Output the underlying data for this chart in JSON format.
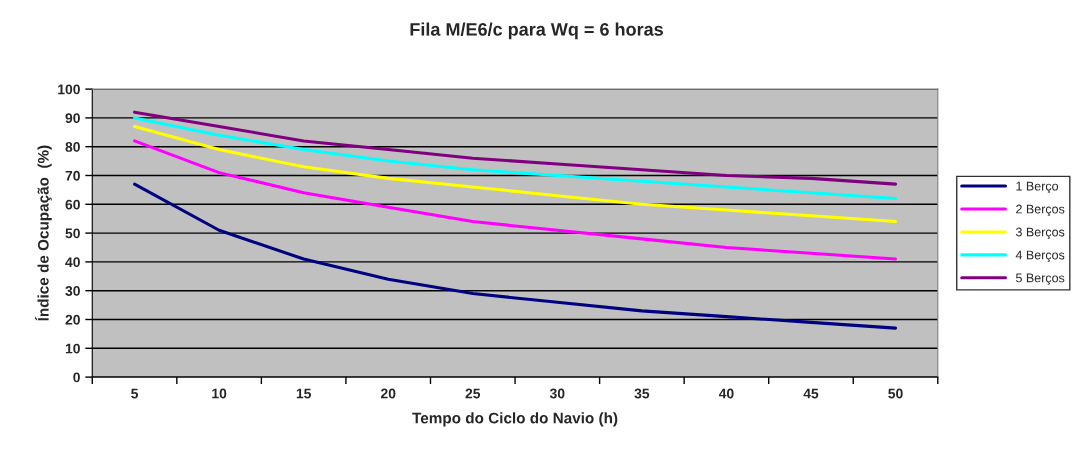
{
  "chart_data": {
    "type": "line",
    "title": "Fila M/E6/c para Wq = 6 horas",
    "xlabel": "Tempo do Ciclo do Navio (h)",
    "ylabel": "Índice de Ocupação  (%)",
    "x": [
      5,
      10,
      15,
      20,
      25,
      30,
      35,
      40,
      45,
      50
    ],
    "series": [
      {
        "name": "1 Berço",
        "color": "#000080",
        "values": [
          67,
          51,
          41,
          34,
          29,
          26,
          23,
          21,
          19,
          17
        ]
      },
      {
        "name": "2 Berços",
        "color": "#ff00ff",
        "values": [
          82,
          71,
          64,
          59,
          54,
          51,
          48,
          45,
          43,
          41
        ]
      },
      {
        "name": "3 Berços",
        "color": "#ffff00",
        "values": [
          87,
          79,
          73,
          69,
          66,
          63,
          60,
          58,
          56,
          54
        ]
      },
      {
        "name": "4 Berços",
        "color": "#00ffff",
        "values": [
          90,
          84,
          79,
          75,
          72,
          70,
          68,
          66,
          64,
          62
        ]
      },
      {
        "name": "5 Berços",
        "color": "#800080",
        "values": [
          92,
          87,
          82,
          79,
          76,
          74,
          72,
          70,
          69,
          67
        ]
      }
    ],
    "xlim": [
      2.5,
      52.5
    ],
    "xticks": [
      {
        "value": 2.5,
        "label": null
      },
      {
        "value": 5,
        "label": "5"
      },
      {
        "value": 7.5,
        "label": null
      },
      {
        "value": 10,
        "label": "10"
      },
      {
        "value": 12.5,
        "label": null
      },
      {
        "value": 15,
        "label": "15"
      },
      {
        "value": 17.5,
        "label": null
      },
      {
        "value": 20,
        "label": "20"
      },
      {
        "value": 22.5,
        "label": null
      },
      {
        "value": 25,
        "label": "25"
      },
      {
        "value": 27.5,
        "label": null
      },
      {
        "value": 30,
        "label": "30"
      },
      {
        "value": 32.5,
        "label": null
      },
      {
        "value": 35,
        "label": "35"
      },
      {
        "value": 37.5,
        "label": null
      },
      {
        "value": 40,
        "label": "40"
      },
      {
        "value": 42.5,
        "label": null
      },
      {
        "value": 45,
        "label": "45"
      },
      {
        "value": 47.5,
        "label": null
      },
      {
        "value": 50,
        "label": "50"
      },
      {
        "value": 52.5,
        "label": null
      }
    ],
    "ylim": [
      0,
      100
    ],
    "yticks": [
      0,
      10,
      20,
      30,
      40,
      50,
      60,
      70,
      80,
      90,
      100
    ],
    "grid": "y",
    "legend": "right",
    "marker": "none",
    "line_style": "solid"
  }
}
